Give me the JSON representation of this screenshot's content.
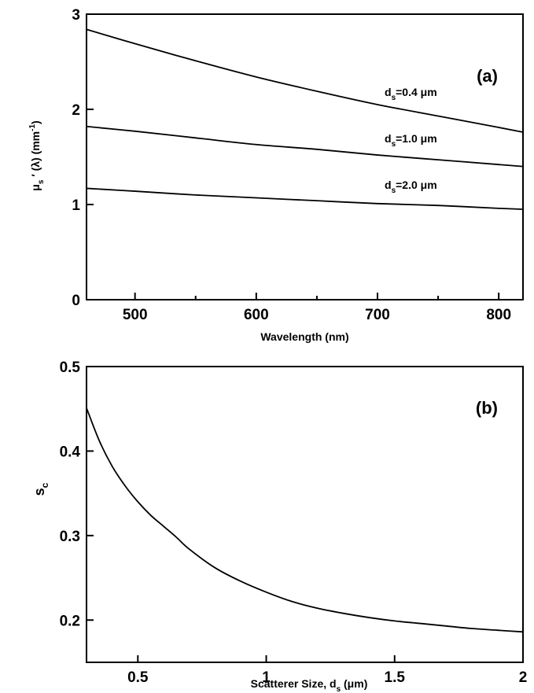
{
  "chart_data": [
    {
      "type": "line",
      "panel_label": "(a)",
      "xlabel": "Wavelength (nm)",
      "ylabel": "μs′ (λ) (mm⁻¹)",
      "xlim": [
        460,
        820
      ],
      "ylim": [
        0,
        3
      ],
      "xticks": [
        500,
        600,
        700,
        800
      ],
      "xminor_ticks": [
        550,
        650,
        750
      ],
      "yticks": [
        0,
        1,
        2,
        3
      ],
      "grid": false,
      "x": [
        460,
        500,
        550,
        600,
        650,
        700,
        750,
        800,
        820
      ],
      "series": [
        {
          "name": "ds=0.4 μm",
          "values": [
            2.84,
            2.69,
            2.51,
            2.34,
            2.19,
            2.05,
            1.93,
            1.81,
            1.76
          ]
        },
        {
          "name": "ds=1.0 μm",
          "values": [
            1.82,
            1.77,
            1.7,
            1.63,
            1.58,
            1.52,
            1.47,
            1.42,
            1.4
          ]
        },
        {
          "name": "ds=2.0 μm",
          "values": [
            1.17,
            1.14,
            1.1,
            1.07,
            1.04,
            1.01,
            0.99,
            0.96,
            0.95
          ]
        }
      ],
      "label_text": [
        "d",
        "s",
        "=0.4 μm",
        "=1.0 μm",
        "=2.0 μm"
      ]
    },
    {
      "type": "line",
      "panel_label": "(b)",
      "xlabel": "Scatterer Size, ds (μm)",
      "ylabel": "sc",
      "xlim": [
        0.3,
        2.0
      ],
      "ylim": [
        0.15,
        0.5
      ],
      "xticks": [
        0.5,
        1,
        1.5,
        2
      ],
      "yticks": [
        0.2,
        0.3,
        0.4,
        0.5
      ],
      "grid": false,
      "x": [
        0.3,
        0.35,
        0.4,
        0.45,
        0.5,
        0.55,
        0.6,
        0.65,
        0.7,
        0.8,
        0.9,
        1.0,
        1.1,
        1.2,
        1.3,
        1.4,
        1.5,
        1.6,
        1.7,
        1.8,
        1.9,
        2.0
      ],
      "series": [
        {
          "values": [
            0.451,
            0.412,
            0.382,
            0.359,
            0.34,
            0.324,
            0.311,
            0.298,
            0.284,
            0.262,
            0.246,
            0.233,
            0.222,
            0.214,
            0.208,
            0.203,
            0.199,
            0.196,
            0.193,
            0.19,
            0.188,
            0.186
          ]
        }
      ]
    }
  ]
}
